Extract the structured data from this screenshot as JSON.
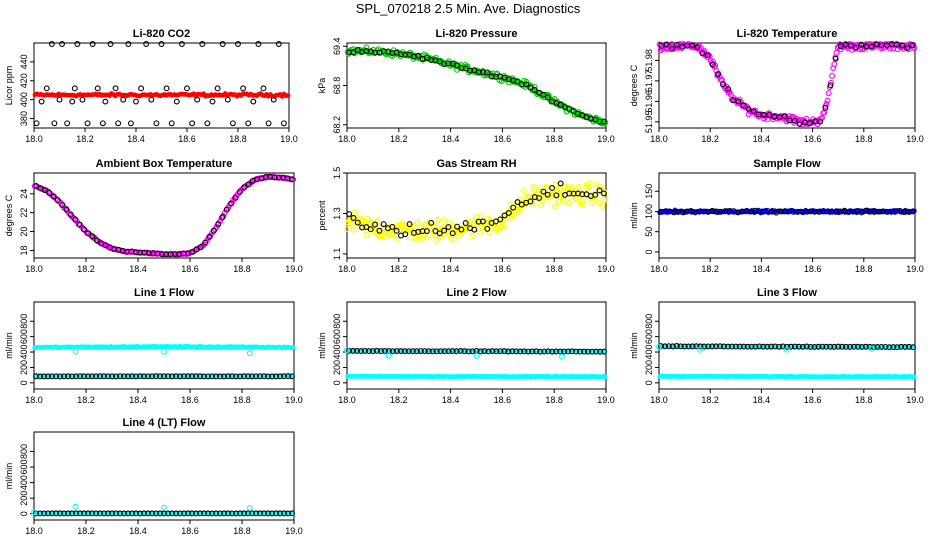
{
  "page": {
    "title": "SPL_070218  2.5 Min. Ave. Diagnostics"
  },
  "colors": {
    "red": "#ff0000",
    "green": "#00cc00",
    "magenta": "#ff00ff",
    "yellow": "#ffff00",
    "blue": "#0000ff",
    "cyan": "#00ffff",
    "black": "#000000"
  },
  "chart_data": [
    {
      "id": "co2",
      "type": "scatter",
      "title": "Li-820 CO2",
      "ylabel": "Licor ppm",
      "xlim": [
        18.0,
        19.0
      ],
      "ylim": [
        370,
        460
      ],
      "xticks": [
        18.0,
        18.2,
        18.4,
        18.6,
        18.8,
        19.0
      ],
      "yticks": [
        380,
        400,
        420,
        440
      ],
      "series": [
        {
          "name": "fill",
          "color": "red",
          "marker": "dot",
          "model": "linear",
          "x": [
            18.0,
            19.0
          ],
          "y": [
            405,
            405
          ],
          "n": 130,
          "noise": 1.2
        },
        {
          "name": "points",
          "color": "black",
          "marker": "ring",
          "x": [
            18.01,
            18.03,
            18.05,
            18.07,
            18.08,
            18.1,
            18.11,
            18.13,
            18.15,
            18.16,
            18.17,
            18.19,
            18.21,
            18.23,
            18.25,
            18.27,
            18.28,
            18.3,
            18.32,
            18.33,
            18.35,
            18.37,
            18.38,
            18.4,
            18.42,
            18.44,
            18.46,
            18.48,
            18.5,
            18.52,
            18.54,
            18.56,
            18.58,
            18.6,
            18.62,
            18.64,
            18.66,
            18.68,
            18.7,
            18.72,
            18.74,
            18.76,
            18.78,
            18.8,
            18.82,
            18.84,
            18.86,
            18.88,
            18.9,
            18.92,
            18.94,
            18.96,
            18.98
          ],
          "y": [
            375,
            398,
            412,
            460,
            375,
            400,
            460,
            375,
            398,
            412,
            460,
            400,
            375,
            460,
            412,
            375,
            398,
            460,
            412,
            375,
            400,
            460,
            375,
            398,
            412,
            460,
            400,
            375,
            460,
            412,
            375,
            398,
            460,
            412,
            375,
            400,
            460,
            375,
            398,
            412,
            460,
            400,
            375,
            460,
            412,
            375,
            398,
            460,
            412,
            375,
            400,
            460,
            375
          ]
        }
      ]
    },
    {
      "id": "pressure",
      "type": "scatter",
      "title": "Li-820 Pressure",
      "ylabel": "kPa",
      "xlim": [
        18.0,
        19.0
      ],
      "ylim": [
        68.15,
        69.45
      ],
      "xticks": [
        18.0,
        18.2,
        18.4,
        18.6,
        18.8,
        19.0
      ],
      "yticks": [
        68.2,
        68.8,
        69.4
      ],
      "series": [
        {
          "name": "green",
          "color": "green",
          "marker": "ring",
          "model": "linear",
          "x": [
            18.0,
            18.1,
            18.2,
            18.3,
            18.4,
            18.5,
            18.6,
            18.7,
            18.8,
            18.9,
            19.0
          ],
          "y": [
            69.33,
            69.32,
            69.29,
            69.22,
            69.12,
            69.02,
            68.93,
            68.8,
            68.55,
            68.35,
            68.22
          ],
          "n": 220,
          "noise": 0.04
        },
        {
          "name": "black",
          "color": "black",
          "marker": "ring",
          "model": "linear",
          "x": [
            18.0,
            18.1,
            18.2,
            18.3,
            18.4,
            18.5,
            18.6,
            18.7,
            18.8,
            18.9,
            19.0
          ],
          "y": [
            69.33,
            69.32,
            69.29,
            69.22,
            69.12,
            69.02,
            68.93,
            68.8,
            68.55,
            68.35,
            68.22
          ],
          "n": 60,
          "noise": 0.02
        }
      ]
    },
    {
      "id": "licor-temp",
      "type": "scatter",
      "title": "Li-820 Temperature",
      "ylabel": "degrees C",
      "xlim": [
        18.0,
        19.0
      ],
      "ylim": [
        51.947,
        51.9885
      ],
      "xticks": [
        18.0,
        18.2,
        18.4,
        18.6,
        18.8,
        19.0
      ],
      "yticks": [
        51.95,
        51.96,
        51.97,
        51.98
      ],
      "series": [
        {
          "name": "magenta",
          "color": "magenta",
          "marker": "ring",
          "model": "linear",
          "x": [
            18.0,
            18.1,
            18.15,
            18.2,
            18.25,
            18.3,
            18.35,
            18.4,
            18.45,
            18.5,
            18.55,
            18.6,
            18.63,
            18.66,
            18.68,
            18.7,
            18.75,
            18.8,
            19.0
          ],
          "y": [
            51.987,
            51.987,
            51.987,
            51.981,
            51.968,
            51.96,
            51.956,
            51.953,
            51.953,
            51.952,
            51.95,
            51.95,
            51.951,
            51.96,
            51.976,
            51.987,
            51.987,
            51.987,
            51.987
          ],
          "n": 230,
          "noise": 0.0015
        },
        {
          "name": "black",
          "color": "black",
          "marker": "ring",
          "model": "linear",
          "x": [
            18.0,
            18.1,
            18.15,
            18.2,
            18.25,
            18.3,
            18.35,
            18.4,
            18.45,
            18.5,
            18.55,
            18.6,
            18.63,
            18.66,
            18.68,
            18.7,
            18.75,
            18.8,
            19.0
          ],
          "y": [
            51.987,
            51.987,
            51.987,
            51.981,
            51.968,
            51.96,
            51.956,
            51.953,
            51.953,
            51.952,
            51.95,
            51.95,
            51.951,
            51.96,
            51.976,
            51.987,
            51.987,
            51.987,
            51.987
          ],
          "n": 50,
          "noise": 0.001
        }
      ]
    },
    {
      "id": "ambient",
      "type": "scatter",
      "title": "Ambient Box Temperature",
      "ylabel": "degrees C",
      "xlim": [
        18.0,
        19.0
      ],
      "ylim": [
        17.2,
        26.2
      ],
      "xticks": [
        18.0,
        18.2,
        18.4,
        18.6,
        18.8,
        19.0
      ],
      "yticks": [
        18,
        20,
        22,
        24
      ],
      "series": [
        {
          "name": "magenta",
          "color": "magenta",
          "marker": "ring",
          "model": "linear",
          "x": [
            18.0,
            18.05,
            18.1,
            18.15,
            18.2,
            18.25,
            18.3,
            18.35,
            18.4,
            18.45,
            18.5,
            18.55,
            18.6,
            18.65,
            18.7,
            18.75,
            18.8,
            18.85,
            18.9,
            18.95,
            19.0
          ],
          "y": [
            24.9,
            24.3,
            23.1,
            21.5,
            20.0,
            18.9,
            18.2,
            17.9,
            17.8,
            17.7,
            17.6,
            17.6,
            17.7,
            18.5,
            20.4,
            22.7,
            24.5,
            25.5,
            25.8,
            25.7,
            25.5
          ],
          "n": 160,
          "noise": 0.05
        },
        {
          "name": "black",
          "color": "black",
          "marker": "ring",
          "model": "linear",
          "x": [
            18.0,
            18.05,
            18.1,
            18.15,
            18.2,
            18.25,
            18.3,
            18.35,
            18.4,
            18.45,
            18.5,
            18.55,
            18.6,
            18.65,
            18.7,
            18.75,
            18.8,
            18.85,
            18.9,
            18.95,
            19.0
          ],
          "y": [
            24.9,
            24.3,
            23.1,
            21.5,
            20.0,
            18.9,
            18.2,
            17.9,
            17.8,
            17.7,
            17.6,
            17.6,
            17.7,
            18.5,
            20.4,
            22.7,
            24.5,
            25.5,
            25.8,
            25.7,
            25.5
          ],
          "n": 60,
          "noise": 0.03
        }
      ]
    },
    {
      "id": "rh",
      "type": "scatter",
      "title": "Gas Stream RH",
      "ylabel": "percent",
      "xlim": [
        18.0,
        19.0
      ],
      "ylim": [
        1.08,
        1.5
      ],
      "xticks": [
        18.0,
        18.2,
        18.4,
        18.6,
        18.8,
        19.0
      ],
      "yticks": [
        1.1,
        1.3,
        1.5
      ],
      "series": [
        {
          "name": "yellow",
          "color": "yellow",
          "marker": "ring",
          "model": "linear",
          "x": [
            18.0,
            18.1,
            18.2,
            18.3,
            18.4,
            18.5,
            18.6,
            18.65,
            18.7,
            18.8,
            18.9,
            19.0
          ],
          "y": [
            1.26,
            1.23,
            1.22,
            1.21,
            1.22,
            1.24,
            1.26,
            1.32,
            1.38,
            1.4,
            1.39,
            1.4
          ],
          "n": 260,
          "noise": 0.045
        },
        {
          "name": "black",
          "color": "black",
          "marker": "ring",
          "model": "linear",
          "x": [
            18.0,
            18.1,
            18.2,
            18.3,
            18.4,
            18.5,
            18.6,
            18.65,
            18.7,
            18.8,
            18.9,
            19.0
          ],
          "y": [
            1.26,
            1.23,
            1.22,
            1.21,
            1.22,
            1.24,
            1.26,
            1.32,
            1.38,
            1.4,
            1.39,
            1.4
          ],
          "n": 60,
          "noise": 0.035
        }
      ]
    },
    {
      "id": "sample",
      "type": "scatter",
      "title": "Sample Flow",
      "ylabel": "ml/min",
      "xlim": [
        18.0,
        19.0
      ],
      "ylim": [
        -15,
        195
      ],
      "xticks": [
        18.0,
        18.2,
        18.4,
        18.6,
        18.8,
        19.0
      ],
      "yticks": [
        0,
        50,
        100,
        150
      ],
      "series": [
        {
          "name": "blue",
          "color": "blue",
          "marker": "dot",
          "model": "linear",
          "x": [
            18.0,
            19.0
          ],
          "y": [
            100,
            100
          ],
          "n": 200,
          "noise": 2.5
        },
        {
          "name": "black",
          "color": "black",
          "marker": "ring",
          "model": "linear",
          "x": [
            18.0,
            19.0
          ],
          "y": [
            100,
            100
          ],
          "n": 60,
          "noise": 2
        }
      ]
    },
    {
      "id": "line1",
      "type": "scatter",
      "title": "Line 1 Flow",
      "ylabel": "ml/min",
      "xlim": [
        18.0,
        19.0
      ],
      "ylim": [
        -80,
        1050
      ],
      "xticks": [
        18.0,
        18.2,
        18.4,
        18.6,
        18.8,
        19.0
      ],
      "yticks": [
        0,
        200,
        400,
        600,
        800
      ],
      "series": [
        {
          "name": "cyan-high",
          "color": "cyan",
          "marker": "dot",
          "model": "linear",
          "x": [
            18.0,
            18.5,
            19.0
          ],
          "y": [
            460,
            470,
            460
          ],
          "n": 170,
          "noise": 6
        },
        {
          "name": "cyan-low",
          "color": "cyan",
          "marker": "dot",
          "model": "linear",
          "x": [
            18.0,
            19.0
          ],
          "y": [
            85,
            85
          ],
          "n": 60,
          "noise": 4
        },
        {
          "name": "black",
          "color": "black",
          "marker": "ring",
          "model": "linear",
          "x": [
            18.0,
            19.0
          ],
          "y": [
            85,
            85
          ],
          "n": 65,
          "noise": 2
        },
        {
          "name": "cyan-outliers",
          "color": "cyan",
          "marker": "ring",
          "x": [
            18.16,
            18.5,
            18.83
          ],
          "y": [
            405,
            405,
            385
          ]
        }
      ]
    },
    {
      "id": "line2",
      "type": "scatter",
      "title": "Line 2 Flow",
      "ylabel": "ml/min",
      "xlim": [
        18.0,
        19.0
      ],
      "ylim": [
        -80,
        1050
      ],
      "xticks": [
        18.0,
        18.2,
        18.4,
        18.6,
        18.8,
        19.0
      ],
      "yticks": [
        0,
        200,
        400,
        600,
        800
      ],
      "series": [
        {
          "name": "cyan-low",
          "color": "cyan",
          "marker": "dot",
          "model": "linear",
          "x": [
            18.0,
            19.0
          ],
          "y": [
            85,
            80
          ],
          "n": 170,
          "noise": 4
        },
        {
          "name": "cyan-high",
          "color": "cyan",
          "marker": "dot",
          "model": "linear",
          "x": [
            18.0,
            19.0
          ],
          "y": [
            415,
            405
          ],
          "n": 60,
          "noise": 5
        },
        {
          "name": "black",
          "color": "black",
          "marker": "ring",
          "model": "linear",
          "x": [
            18.0,
            19.0
          ],
          "y": [
            415,
            405
          ],
          "n": 65,
          "noise": 3
        },
        {
          "name": "cyan-outliers",
          "color": "cyan",
          "marker": "ring",
          "x": [
            18.0,
            18.16,
            18.5,
            18.83
          ],
          "y": [
            425,
            355,
            350,
            340
          ]
        }
      ]
    },
    {
      "id": "line3",
      "type": "scatter",
      "title": "Line 3 Flow",
      "ylabel": "ml/min",
      "xlim": [
        18.0,
        19.0
      ],
      "ylim": [
        -80,
        1050
      ],
      "xticks": [
        18.0,
        18.2,
        18.4,
        18.6,
        18.8,
        19.0
      ],
      "yticks": [
        0,
        200,
        400,
        600,
        800
      ],
      "series": [
        {
          "name": "cyan-low",
          "color": "cyan",
          "marker": "dot",
          "model": "linear",
          "x": [
            18.0,
            19.0
          ],
          "y": [
            85,
            80
          ],
          "n": 170,
          "noise": 4
        },
        {
          "name": "cyan-high",
          "color": "cyan",
          "marker": "dot",
          "model": "linear",
          "x": [
            18.0,
            19.0
          ],
          "y": [
            475,
            465
          ],
          "n": 60,
          "noise": 5
        },
        {
          "name": "black",
          "color": "black",
          "marker": "ring",
          "model": "linear",
          "x": [
            18.0,
            19.0
          ],
          "y": [
            475,
            465
          ],
          "n": 65,
          "noise": 3
        },
        {
          "name": "cyan-outliers",
          "color": "cyan",
          "marker": "ring",
          "x": [
            18.0,
            18.16,
            18.5,
            18.83
          ],
          "y": [
            470,
            430,
            430,
            440
          ]
        }
      ]
    },
    {
      "id": "line4",
      "type": "scatter",
      "title": "Line 4 (LT) Flow",
      "ylabel": "ml/min",
      "xlim": [
        18.0,
        19.0
      ],
      "ylim": [
        -80,
        1050
      ],
      "xticks": [
        18.0,
        18.2,
        18.4,
        18.6,
        18.8,
        19.0
      ],
      "yticks": [
        0,
        200,
        400,
        600,
        800
      ],
      "series": [
        {
          "name": "cyan",
          "color": "cyan",
          "marker": "dot",
          "model": "linear",
          "x": [
            18.0,
            19.0
          ],
          "y": [
            5,
            5
          ],
          "n": 100,
          "noise": 2
        },
        {
          "name": "black",
          "color": "black",
          "marker": "ring",
          "model": "linear",
          "x": [
            18.0,
            19.0
          ],
          "y": [
            5,
            5
          ],
          "n": 65,
          "noise": 1
        },
        {
          "name": "cyan-outliers",
          "color": "cyan",
          "marker": "ring",
          "x": [
            18.0,
            18.16,
            18.5,
            18.83
          ],
          "y": [
            20,
            90,
            80,
            75
          ]
        }
      ]
    }
  ]
}
